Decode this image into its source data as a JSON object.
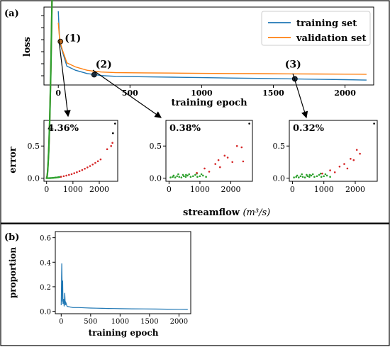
{
  "chart_data": [
    {
      "type": "line",
      "panel_label": "(a)",
      "xlabel": "training epoch",
      "ylabel": "loss",
      "xlim": [
        -100,
        2200
      ],
      "y_tick_labels": "none",
      "xticks": [
        0,
        500,
        1000,
        1500,
        2000
      ],
      "series": [
        {
          "name": "training set",
          "color": "#1f77b4",
          "x": [
            0,
            10,
            30,
            60,
            120,
            200,
            260,
            300,
            400,
            600,
            800,
            1000,
            1200,
            1400,
            1600,
            1800,
            2000,
            2150
          ],
          "y": [
            1.0,
            0.62,
            0.5,
            0.33,
            0.28,
            0.24,
            0.225,
            0.215,
            0.205,
            0.2,
            0.195,
            0.19,
            0.185,
            0.18,
            0.175,
            0.17,
            0.165,
            0.16
          ]
        },
        {
          "name": "validation set",
          "color": "#ff7f0e",
          "x": [
            0,
            10,
            30,
            60,
            120,
            200,
            260,
            300,
            400,
            600,
            800,
            1000,
            1200,
            1400,
            1600,
            1800,
            2000,
            2150
          ],
          "y": [
            0.86,
            0.64,
            0.52,
            0.37,
            0.32,
            0.28,
            0.265,
            0.258,
            0.25,
            0.248,
            0.245,
            0.242,
            0.24,
            0.238,
            0.236,
            0.234,
            0.232,
            0.23
          ]
        }
      ],
      "annotations": [
        {
          "label": "(1)",
          "x": 15,
          "y": 0.63
        },
        {
          "label": "(2)",
          "x": 250,
          "y": 0.225
        },
        {
          "label": "(3)",
          "x": 1650,
          "y": 0.175
        }
      ],
      "legend": "top-right",
      "grid": false
    },
    {
      "type": "scatter",
      "title": "4.36%",
      "ylabel": "error",
      "xlim": [
        -100,
        2700
      ],
      "ylim": [
        -0.05,
        0.9
      ],
      "xticks": [
        0,
        1000,
        2000
      ],
      "yticks": [
        0.0,
        0.5
      ],
      "series": [
        {
          "name": "",
          "color": "#2ca02c",
          "x": [
            0,
            50,
            100,
            150,
            200,
            250,
            300,
            350,
            400,
            450,
            500
          ],
          "y": [
            0.0,
            0.0,
            0.0,
            0.001,
            0.002,
            0.004,
            0.006,
            0.008,
            0.011,
            0.014,
            0.017
          ]
        },
        {
          "name": "",
          "color": "#d62728",
          "x": [
            550,
            650,
            750,
            850,
            950,
            1050,
            1150,
            1250,
            1350,
            1450,
            1550,
            1650,
            1750,
            1850,
            1950,
            2050
          ],
          "y": [
            0.021,
            0.029,
            0.039,
            0.05,
            0.062,
            0.076,
            0.091,
            0.108,
            0.126,
            0.145,
            0.166,
            0.188,
            0.212,
            0.237,
            0.263,
            0.291
          ]
        },
        {
          "name": "",
          "color": "#d62728",
          "x": [
            2300,
            2450,
            2500
          ],
          "y": [
            0.45,
            0.5,
            0.55
          ]
        },
        {
          "name": "",
          "color": "#000000",
          "x": [
            2520,
            2600
          ],
          "y": [
            0.7,
            0.85
          ]
        }
      ]
    },
    {
      "type": "scatter",
      "title": "0.38%",
      "xlabel": "streamflow",
      "xlabel_unit": "(m³/s)",
      "xlim": [
        -100,
        2700
      ],
      "ylim": [
        -0.05,
        0.9
      ],
      "xticks": [
        0,
        1000,
        2000
      ],
      "yticks": [
        0.0,
        0.5
      ],
      "series": [
        {
          "name": "",
          "color": "#2ca02c",
          "x": [
            50,
            120,
            200,
            260,
            330,
            400,
            480,
            540,
            600,
            700,
            780,
            850,
            920,
            1000,
            1100,
            1200,
            300,
            450,
            650,
            900,
            150,
            550,
            1050
          ],
          "y": [
            0.01,
            0.02,
            0.01,
            0.03,
            0.02,
            0.01,
            0.03,
            0.02,
            0.04,
            0.02,
            0.03,
            0.05,
            0.02,
            0.03,
            0.04,
            0.02,
            0.06,
            0.05,
            0.06,
            0.07,
            0.04,
            0.05,
            0.06
          ]
        },
        {
          "name": "",
          "color": "#d62728",
          "x": [
            900,
            1150,
            1300,
            1500,
            1600,
            1650,
            1800,
            1900,
            2050,
            2200,
            2350,
            2400
          ],
          "y": [
            0.08,
            0.15,
            0.1,
            0.22,
            0.28,
            0.17,
            0.35,
            0.32,
            0.25,
            0.5,
            0.48,
            0.26
          ]
        },
        {
          "name": "",
          "color": "#000000",
          "x": [
            2600
          ],
          "y": [
            0.85
          ]
        }
      ]
    },
    {
      "type": "scatter",
      "title": "0.32%",
      "xlim": [
        -100,
        2700
      ],
      "ylim": [
        -0.05,
        0.9
      ],
      "xticks": [
        0,
        1000,
        2000
      ],
      "yticks": [
        0.0,
        0.5
      ],
      "series": [
        {
          "name": "",
          "color": "#2ca02c",
          "x": [
            50,
            120,
            200,
            260,
            330,
            400,
            480,
            540,
            600,
            700,
            780,
            850,
            920,
            1000,
            1100,
            1200,
            300,
            450,
            650,
            900,
            150,
            550,
            1050
          ],
          "y": [
            0.01,
            0.02,
            0.01,
            0.03,
            0.02,
            0.01,
            0.03,
            0.02,
            0.04,
            0.02,
            0.03,
            0.05,
            0.02,
            0.03,
            0.04,
            0.02,
            0.06,
            0.05,
            0.06,
            0.07,
            0.04,
            0.05,
            0.06
          ]
        },
        {
          "name": "",
          "color": "#d62728",
          "x": [
            950,
            1200,
            1350,
            1500,
            1650,
            1750,
            1850,
            1950,
            2050,
            2150
          ],
          "y": [
            0.07,
            0.12,
            0.09,
            0.18,
            0.22,
            0.15,
            0.3,
            0.28,
            0.44,
            0.38
          ]
        },
        {
          "name": "",
          "color": "#000000",
          "x": [
            2600
          ],
          "y": [
            0.85
          ]
        }
      ]
    },
    {
      "type": "line",
      "panel_label": "(b)",
      "xlabel": "training epoch",
      "ylabel": "proportion",
      "xlim": [
        -100,
        2200
      ],
      "ylim": [
        -0.02,
        0.65
      ],
      "xticks": [
        0,
        500,
        1000,
        1500,
        2000
      ],
      "yticks": [
        0.0,
        0.2,
        0.4,
        0.6
      ],
      "series": [
        {
          "name": "",
          "color": "#1f77b4",
          "x": [
            0,
            10,
            20,
            25,
            30,
            40,
            50,
            60,
            70,
            80,
            100,
            150,
            200,
            300,
            400,
            500,
            600,
            700,
            800,
            900,
            1000,
            1200,
            1400,
            1600,
            1800,
            2000,
            2150
          ],
          "y": [
            0.05,
            0.39,
            0.08,
            0.25,
            0.06,
            0.1,
            0.04,
            0.15,
            0.05,
            0.07,
            0.04,
            0.035,
            0.03,
            0.03,
            0.028,
            0.026,
            0.025,
            0.024,
            0.023,
            0.022,
            0.021,
            0.02,
            0.019,
            0.018,
            0.017,
            0.016,
            0.015
          ]
        }
      ]
    }
  ]
}
